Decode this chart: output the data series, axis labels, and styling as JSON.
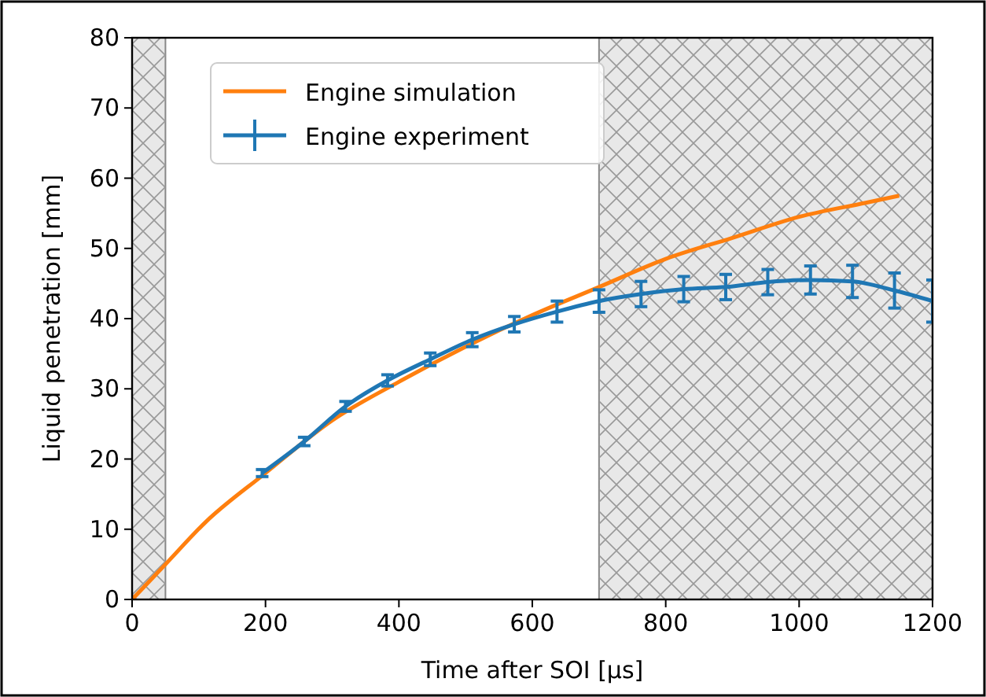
{
  "chart_data": {
    "type": "line",
    "xlabel": "Time after SOI [μs]",
    "ylabel": "Liquid penetration [mm]",
    "xlim": [
      0,
      1200
    ],
    "xticks": [
      0,
      200,
      400,
      600,
      800,
      1000,
      1200
    ],
    "ylim": [
      0,
      80
    ],
    "yticks": [
      0,
      10,
      20,
      30,
      40,
      50,
      60,
      70,
      80
    ],
    "grid": false,
    "legend": "top left",
    "series": [
      {
        "name": "Engine simulation",
        "color": "#ff7f0e",
        "x": [
          0,
          50,
          110,
          200,
          300,
          400,
          500,
          600,
          700,
          800,
          900,
          1000,
          1100,
          1150
        ],
        "values": [
          0,
          5,
          11,
          18,
          25.5,
          31,
          36,
          40.5,
          44.5,
          48.5,
          51.5,
          54.5,
          56.5,
          57.5
        ]
      },
      {
        "name": "Engine experiment",
        "color": "#1f77b4",
        "x": [
          195,
          258,
          320,
          383,
          447,
          510,
          573,
          637,
          700,
          763,
          827,
          890,
          953,
          1017,
          1080,
          1143,
          1200
        ],
        "values": [
          18,
          22.5,
          27.5,
          31.2,
          34.2,
          37,
          39.2,
          41,
          42.5,
          43.5,
          44.2,
          44.5,
          45.2,
          45.5,
          45.3,
          44,
          42.5
        ],
        "errors": [
          0.5,
          0.6,
          0.7,
          0.8,
          0.9,
          1,
          1.1,
          1.5,
          1.6,
          1.8,
          1.8,
          1.8,
          1.8,
          2,
          2.3,
          2.5,
          3
        ]
      }
    ],
    "bands": [
      {
        "axis": "x",
        "from": 0,
        "to": 50,
        "color": "#e8e8e8"
      },
      {
        "axis": "x",
        "from": 700,
        "to": 1200,
        "color": "#e8e8e8"
      }
    ]
  }
}
